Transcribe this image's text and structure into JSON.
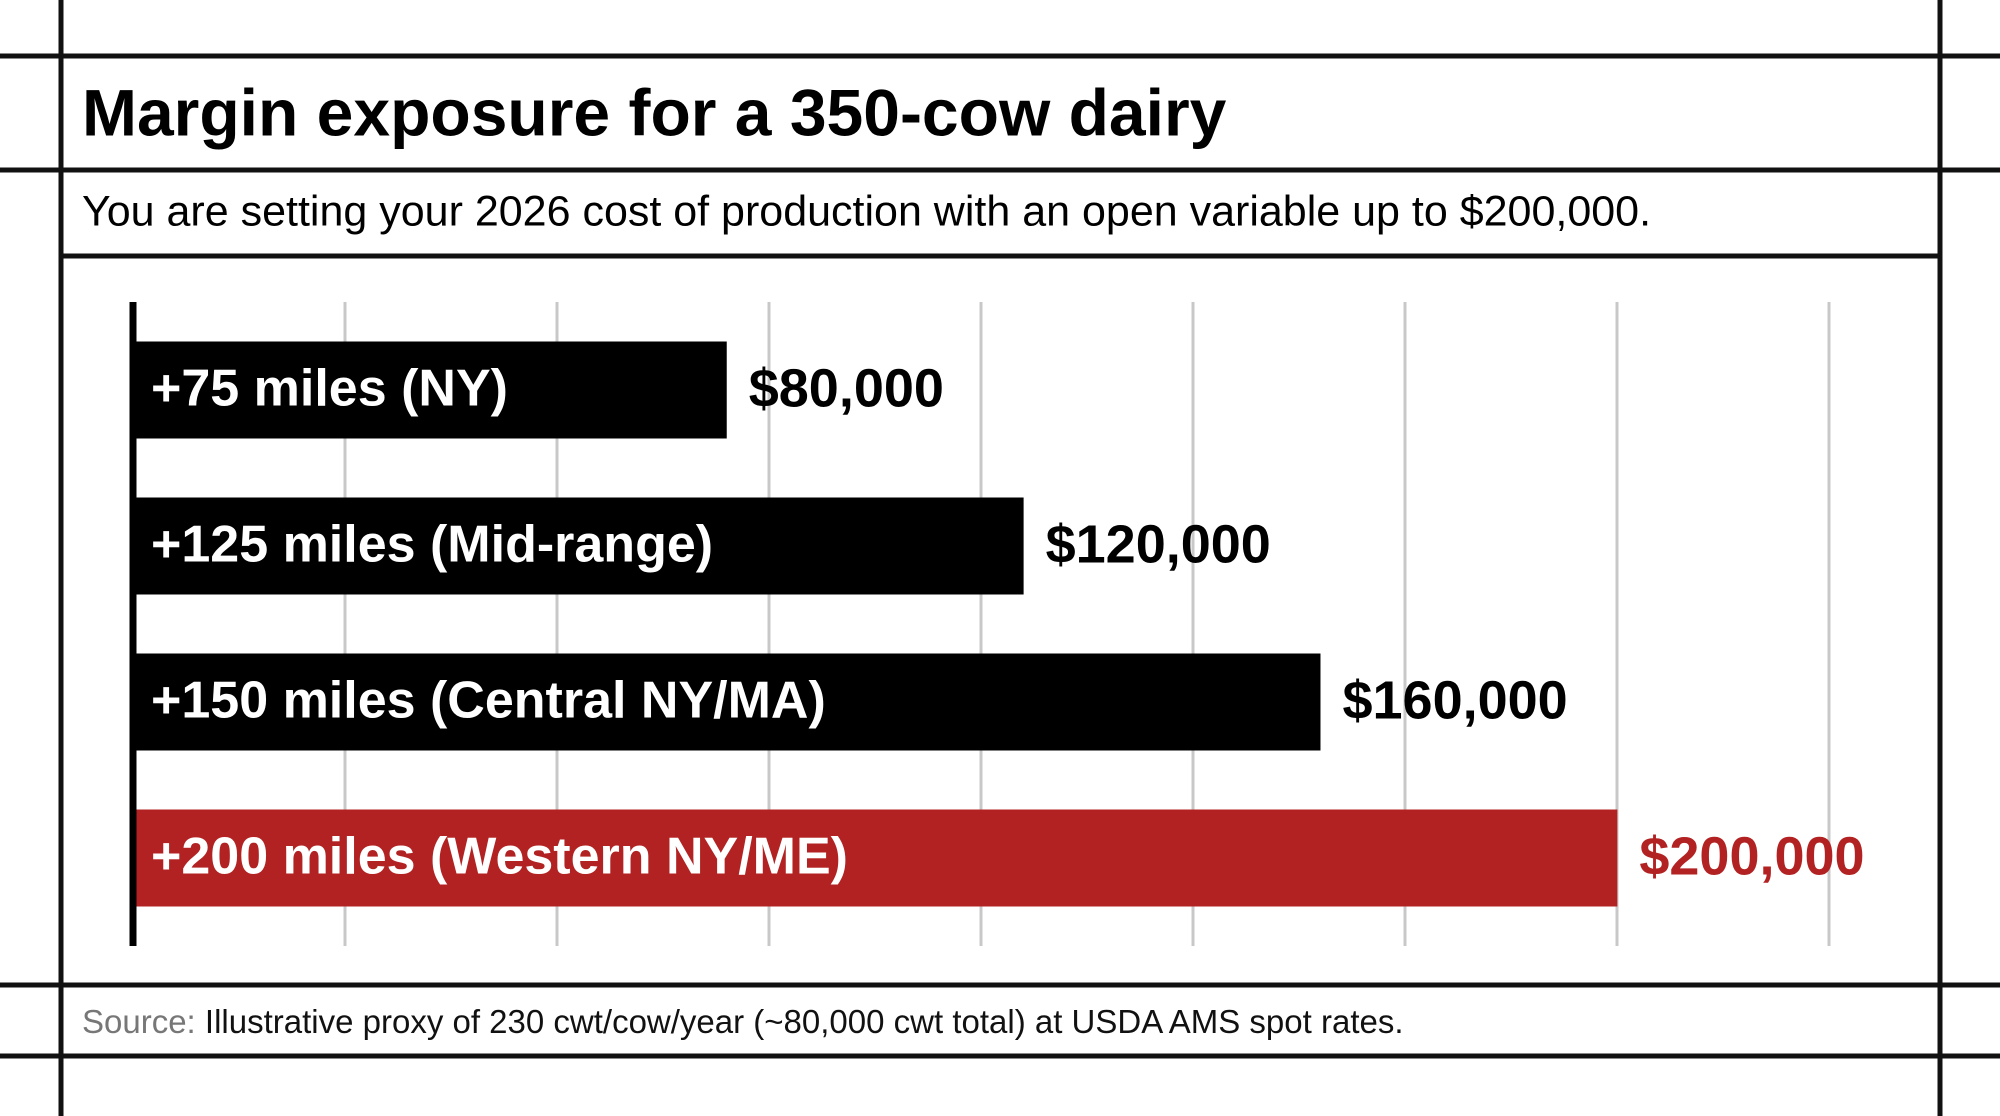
{
  "chart_data": {
    "type": "bar",
    "orientation": "horizontal",
    "title": "Margin exposure for a 350-cow dairy",
    "subtitle": "You are setting your 2026 cost of production with an open variable up to $200,000.",
    "categories": [
      "+75 miles (NY)",
      "+125 miles (Mid-range)",
      "+150 miles (Central NY/MA)",
      "+200 miles (Western NY/ME)"
    ],
    "values": [
      80000,
      120000,
      160000,
      200000
    ],
    "value_labels": [
      "$80,000",
      "$120,000",
      "$160,000",
      "$200,000"
    ],
    "colors": [
      "#000000",
      "#000000",
      "#000000",
      "#b22222"
    ],
    "label_colors": [
      "#000000",
      "#000000",
      "#000000",
      "#b22222"
    ],
    "xlim": [
      0,
      230000
    ],
    "grid": true,
    "source_label": "Source:",
    "source_text": "Illustrative proxy of 230 cwt/cow/year (~80,000 cwt total) at USDA AMS spot rates."
  }
}
